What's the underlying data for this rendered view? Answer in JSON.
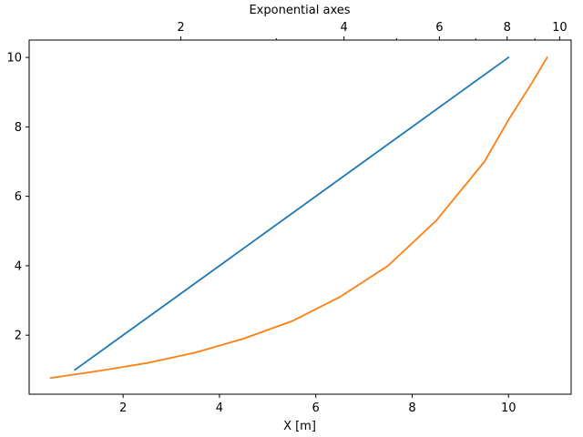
{
  "chart_data": {
    "type": "line",
    "title": "Exponential axes",
    "xlabel": "X [m]",
    "ylabel": "",
    "xlim": [
      0.05,
      11.3
    ],
    "ylim": [
      0.3,
      10.5
    ],
    "grid": false,
    "legend": "none",
    "x_ticks": [
      2,
      4,
      6,
      8,
      10
    ],
    "y_ticks": [
      2,
      4,
      6,
      8,
      10
    ],
    "top_axis": {
      "scale": "log",
      "range": [
        1.05,
        10.5
      ],
      "ticks": [
        2,
        4,
        6,
        8,
        10
      ],
      "minor_ticks": [
        3,
        5,
        7,
        9
      ]
    },
    "series": [
      {
        "color": "#1f77b4",
        "x": [
          1,
          10
        ],
        "y": [
          1,
          10
        ]
      },
      {
        "color": "#ff7f0e",
        "x": [
          0.5,
          1.5,
          2.5,
          3.5,
          4.5,
          5.5,
          6.5,
          7.5,
          8.5,
          9.5,
          10.0,
          10.5,
          10.8
        ],
        "y": [
          0.77,
          0.97,
          1.2,
          1.5,
          1.9,
          2.4,
          3.1,
          4.0,
          5.3,
          7.0,
          8.2,
          9.3,
          10.0
        ]
      }
    ]
  }
}
